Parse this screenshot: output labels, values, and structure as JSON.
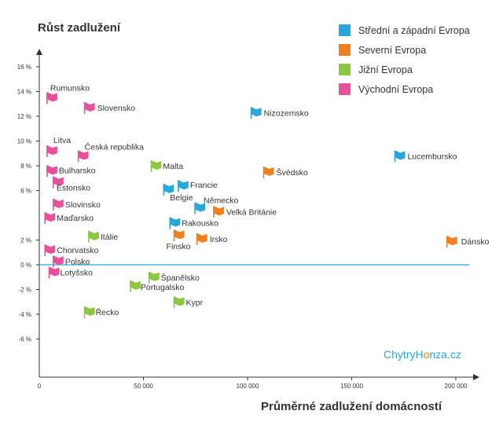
{
  "chart_data": {
    "type": "scatter",
    "title": "Růst zadlužení",
    "xlabel": "Průměrné zadlužení domácností",
    "ylabel": "Růst zadlužení",
    "xlim": [
      0,
      210000
    ],
    "ylim": [
      -8,
      17
    ],
    "x_ticks": [
      {
        "value": 0,
        "label": "0"
      },
      {
        "value": 50000,
        "label": "50 000"
      },
      {
        "value": 100000,
        "label": "100 000"
      },
      {
        "value": 150000,
        "label": "150 000"
      },
      {
        "value": 200000,
        "label": "200 000"
      }
    ],
    "y_ticks": [
      {
        "value": 16,
        "label": "16 %"
      },
      {
        "value": 14,
        "label": "14 %"
      },
      {
        "value": 12,
        "label": "12 %"
      },
      {
        "value": 10,
        "label": "10 %"
      },
      {
        "value": 8,
        "label": "8 %"
      },
      {
        "value": 6,
        "label": "6 %"
      },
      {
        "value": 2,
        "label": "2 %"
      },
      {
        "value": 0,
        "label": "0 %"
      },
      {
        "value": -2,
        "label": "-2 %"
      },
      {
        "value": -4,
        "label": "-4 %"
      },
      {
        "value": -6,
        "label": "-6 %"
      }
    ],
    "reference_line": {
      "y": 0,
      "color": "#2aa7d9"
    },
    "legend_position": "top-right",
    "series": [
      {
        "name": "Střední a západní Evropa",
        "color": "#2aa7d9",
        "points": [
          {
            "label": "Nizozemsko",
            "x": 104000,
            "y": 12.3
          },
          {
            "label": "Lucembursko",
            "x": 173000,
            "y": 8.8
          },
          {
            "label": "Francie",
            "x": 69000,
            "y": 6.4
          },
          {
            "label": "Belgie",
            "x": 62000,
            "y": 6.1
          },
          {
            "label": "Německo",
            "x": 77000,
            "y": 4.6
          },
          {
            "label": "Rakousko",
            "x": 65000,
            "y": 3.4
          }
        ]
      },
      {
        "name": "Severní Evropa",
        "color": "#f07f1f",
        "points": [
          {
            "label": "Švédsko",
            "x": 110000,
            "y": 7.5
          },
          {
            "label": "Velká Británie",
            "x": 86000,
            "y": 4.3
          },
          {
            "label": "Finsko",
            "x": 67000,
            "y": 2.4
          },
          {
            "label": "Irsko",
            "x": 78000,
            "y": 2.1
          },
          {
            "label": "Dánsko",
            "x": 198000,
            "y": 1.9
          }
        ]
      },
      {
        "name": "Jižní Evropa",
        "color": "#8dc63f",
        "points": [
          {
            "label": "Malta",
            "x": 56000,
            "y": 8.0
          },
          {
            "label": "Itálie",
            "x": 26000,
            "y": 2.3
          },
          {
            "label": "Španělsko",
            "x": 55000,
            "y": -1.0
          },
          {
            "label": "Portugalsko",
            "x": 46000,
            "y": -1.7
          },
          {
            "label": "Kypr",
            "x": 67000,
            "y": -3.0
          },
          {
            "label": "Řecko",
            "x": 24000,
            "y": -3.8
          }
        ]
      },
      {
        "name": "Východní Evropa",
        "color": "#e8509a",
        "points": [
          {
            "label": "Rumunsko",
            "x": 6000,
            "y": 13.5
          },
          {
            "label": "Slovensko",
            "x": 24000,
            "y": 12.7
          },
          {
            "label": "Litva",
            "x": 6000,
            "y": 9.2
          },
          {
            "label": "Česká republika",
            "x": 21000,
            "y": 8.8
          },
          {
            "label": "Bulharsko",
            "x": 6000,
            "y": 7.6
          },
          {
            "label": "Estonsko",
            "x": 9000,
            "y": 6.7
          },
          {
            "label": "Slovinsko",
            "x": 9000,
            "y": 4.9
          },
          {
            "label": "Maďarsko",
            "x": 5000,
            "y": 3.8
          },
          {
            "label": "Chorvatsko",
            "x": 5000,
            "y": 1.2
          },
          {
            "label": "Polsko",
            "x": 9000,
            "y": 0.3
          },
          {
            "label": "Lotyšsko",
            "x": 7000,
            "y": -0.6
          }
        ]
      }
    ]
  },
  "brand": {
    "part1": "ChytryH",
    "part2": "o",
    "part3": "nza.cz"
  }
}
